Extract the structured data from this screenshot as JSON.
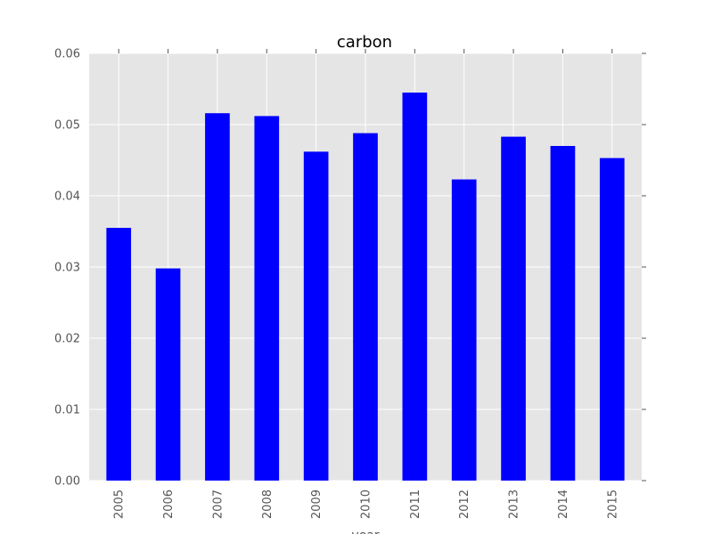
{
  "chart_data": {
    "type": "bar",
    "title": "carbon",
    "xlabel": "year",
    "ylabel": "",
    "categories": [
      "2005",
      "2006",
      "2007",
      "2008",
      "2009",
      "2010",
      "2011",
      "2012",
      "2013",
      "2014",
      "2015"
    ],
    "values": [
      0.0355,
      0.0298,
      0.0516,
      0.0512,
      0.0462,
      0.0488,
      0.0545,
      0.0423,
      0.0483,
      0.047,
      0.0453
    ],
    "ylim": [
      0,
      0.06
    ],
    "yticks": [
      "0.00",
      "0.01",
      "0.02",
      "0.03",
      "0.04",
      "0.05",
      "0.06"
    ],
    "grid": true,
    "legend": "none",
    "colors": {
      "bar": "#0000ff",
      "plot_background": "#e5e5e5",
      "grid": "#ffffff",
      "text": "#555555"
    }
  }
}
